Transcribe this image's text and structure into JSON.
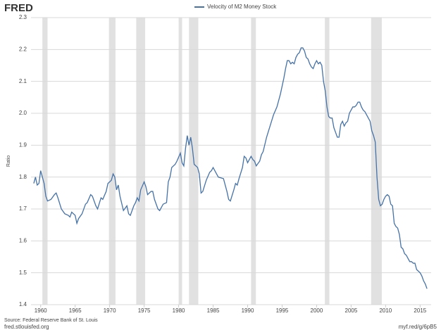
{
  "logo": "FRED",
  "footer": {
    "source": "Source: Federal Reserve Bank of St. Louis",
    "site": "fred.stlouisfed.org",
    "link": "myf.red/g/6pB5"
  },
  "chart_data": {
    "type": "line",
    "ylabel": "Ratio",
    "x": [
      1959,
      1959.25,
      1959.5,
      1959.75,
      1960,
      1960.25,
      1960.5,
      1960.75,
      1961,
      1961.5,
      1962,
      1962.25,
      1962.5,
      1963,
      1963.5,
      1964,
      1964.25,
      1964.5,
      1965,
      1965.25,
      1965.5,
      1966,
      1966.5,
      1966.75,
      1967.25,
      1967.5,
      1968,
      1968.25,
      1968.75,
      1969,
      1969.5,
      1969.75,
      1970.25,
      1970.5,
      1970.75,
      1971,
      1971.25,
      1971.5,
      1972,
      1972.5,
      1972.75,
      1973,
      1973.5,
      1973.75,
      1974,
      1974.25,
      1974.5,
      1975,
      1975.25,
      1975.5,
      1976,
      1976.25,
      1976.5,
      1977,
      1977.25,
      1977.75,
      1978.25,
      1978.5,
      1978.75,
      1979,
      1979.5,
      1979.75,
      1980.25,
      1980.5,
      1980.75,
      1981,
      1981.25,
      1981.5,
      1981.75,
      1982,
      1982.25,
      1982.75,
      1983,
      1983.25,
      1983.5,
      1984,
      1984.5,
      1984.75,
      1985,
      1985.5,
      1985.75,
      1986.5,
      1987,
      1987.25,
      1987.5,
      1988,
      1988.25,
      1988.5,
      1988.75,
      1989.25,
      1989.5,
      1989.75,
      1990,
      1990.25,
      1990.5,
      1990.75,
      1991,
      1991.25,
      1991.75,
      1992,
      1992.25,
      1992.75,
      1993.25,
      1993.75,
      1994.25,
      1994.75,
      1995.25,
      1995.5,
      1995.75,
      1996,
      1996.25,
      1996.5,
      1996.75,
      1997,
      1997.25,
      1997.5,
      1997.75,
      1998,
      1998.25,
      1998.5,
      1998.75,
      1999,
      1999.25,
      1999.5,
      1999.75,
      2000,
      2000.25,
      2000.5,
      2000.75,
      2001,
      2001.25,
      2001.5,
      2001.75,
      2002,
      2002.25,
      2002.5,
      2002.75,
      2003,
      2003.25,
      2003.5,
      2003.75,
      2004,
      2004.25,
      2004.5,
      2004.75,
      2005,
      2005.25,
      2005.5,
      2005.75,
      2006,
      2006.25,
      2006.5,
      2006.75,
      2007,
      2007.25,
      2007.5,
      2007.75,
      2008,
      2008.25,
      2008.5,
      2008.75,
      2009,
      2009.25,
      2009.5,
      2009.75,
      2010,
      2010.25,
      2010.5,
      2010.75,
      2011,
      2011.25,
      2011.5,
      2011.75,
      2012,
      2012.25,
      2012.5,
      2012.75,
      2013,
      2013.25,
      2013.5,
      2013.75,
      2014,
      2014.25,
      2014.5,
      2014.75,
      2015,
      2015.25,
      2015.5,
      2015.75,
      2016
    ],
    "series": [
      {
        "name": "Velocity of M2 Money Stock",
        "color": "#4572a7",
        "values": [
          1.78,
          1.8,
          1.775,
          1.78,
          1.82,
          1.8,
          1.78,
          1.74,
          1.725,
          1.73,
          1.745,
          1.75,
          1.735,
          1.7,
          1.685,
          1.68,
          1.675,
          1.69,
          1.68,
          1.655,
          1.67,
          1.685,
          1.715,
          1.72,
          1.745,
          1.74,
          1.71,
          1.7,
          1.735,
          1.73,
          1.755,
          1.78,
          1.79,
          1.81,
          1.8,
          1.76,
          1.775,
          1.74,
          1.695,
          1.71,
          1.685,
          1.68,
          1.71,
          1.72,
          1.735,
          1.725,
          1.76,
          1.785,
          1.77,
          1.745,
          1.755,
          1.755,
          1.73,
          1.7,
          1.695,
          1.715,
          1.72,
          1.785,
          1.8,
          1.83,
          1.84,
          1.85,
          1.875,
          1.845,
          1.835,
          1.89,
          1.93,
          1.9,
          1.925,
          1.89,
          1.84,
          1.83,
          1.81,
          1.75,
          1.755,
          1.79,
          1.815,
          1.82,
          1.83,
          1.81,
          1.8,
          1.795,
          1.755,
          1.73,
          1.725,
          1.76,
          1.78,
          1.775,
          1.795,
          1.83,
          1.865,
          1.86,
          1.845,
          1.855,
          1.865,
          1.855,
          1.85,
          1.835,
          1.85,
          1.87,
          1.88,
          1.925,
          1.96,
          1.995,
          2.02,
          2.06,
          2.11,
          2.14,
          2.165,
          2.165,
          2.155,
          2.16,
          2.155,
          2.175,
          2.185,
          2.19,
          2.205,
          2.205,
          2.195,
          2.175,
          2.17,
          2.155,
          2.145,
          2.14,
          2.155,
          2.165,
          2.155,
          2.16,
          2.15,
          2.1,
          2.07,
          2.02,
          1.99,
          1.985,
          1.985,
          1.955,
          1.94,
          1.925,
          1.925,
          1.965,
          1.975,
          1.96,
          1.97,
          1.975,
          2.0,
          2.01,
          2.02,
          2.02,
          2.025,
          2.035,
          2.035,
          2.02,
          2.01,
          2.005,
          1.995,
          1.985,
          1.975,
          1.945,
          1.93,
          1.91,
          1.8,
          1.73,
          1.71,
          1.715,
          1.73,
          1.74,
          1.745,
          1.74,
          1.715,
          1.71,
          1.655,
          1.645,
          1.64,
          1.62,
          1.58,
          1.575,
          1.56,
          1.555,
          1.545,
          1.535,
          1.535,
          1.53,
          1.53,
          1.51,
          1.505,
          1.5,
          1.49,
          1.475,
          1.465,
          1.45
        ]
      }
    ],
    "recessions": [
      [
        1960.25,
        1961.0
      ],
      [
        1969.9,
        1970.85
      ],
      [
        1973.85,
        1975.15
      ],
      [
        1980.0,
        1980.5
      ],
      [
        1981.5,
        1982.85
      ],
      [
        1990.5,
        1991.2
      ],
      [
        2001.2,
        2001.85
      ],
      [
        2007.9,
        2009.45
      ]
    ],
    "recession_color": "#e1e1e1",
    "xlim": [
      1958.6,
      2016.6
    ],
    "xticks": [
      1960,
      1965,
      1970,
      1975,
      1980,
      1985,
      1990,
      1995,
      2000,
      2005,
      2010,
      2015
    ],
    "ylim": [
      1.4,
      2.3
    ],
    "yticks": [
      1.4,
      1.5,
      1.6,
      1.7,
      1.8,
      1.9,
      {
        "value": 2,
        "label": "2.0"
      },
      2.1,
      2.2,
      2.3
    ],
    "grid": true
  }
}
